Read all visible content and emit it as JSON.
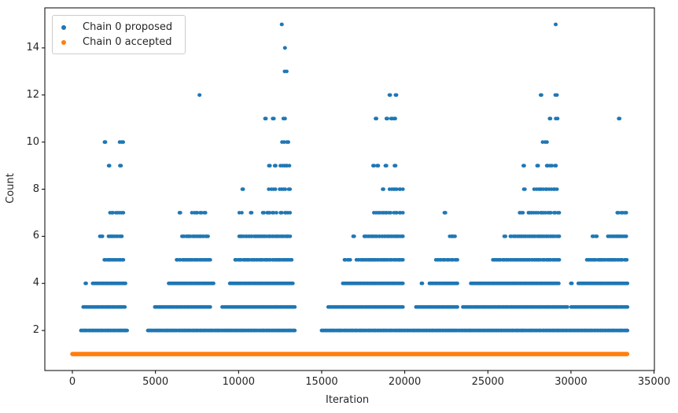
{
  "chart_data": {
    "type": "scatter",
    "title": "",
    "xlabel": "Iteration",
    "ylabel": "Count",
    "xlim": [
      -1657,
      35020
    ],
    "ylim": [
      0.3,
      15.7
    ],
    "xticks": [
      0,
      5000,
      10000,
      15000,
      20000,
      25000,
      30000,
      35000
    ],
    "yticks": [
      2,
      4,
      6,
      8,
      10,
      12,
      14
    ],
    "grid": false,
    "legend_position": "upper-left",
    "marker_diameter_px": 4.6,
    "series": [
      {
        "name": "Chain 0 proposed",
        "color": "#1f77b4",
        "marker": "dot",
        "bands": [
          {
            "count": 15,
            "segments": [
              [
                12590,
                12610
              ],
              [
                29070,
                29090
              ]
            ]
          },
          {
            "count": 14,
            "segments": [
              [
                12780,
                12800
              ]
            ]
          },
          {
            "count": 13,
            "segments": [
              [
                12770,
                12900
              ]
            ]
          },
          {
            "count": 12,
            "segments": [
              [
                7640,
                7660
              ],
              [
                19070,
                19130
              ],
              [
                19440,
                19500
              ],
              [
                28170,
                28230
              ],
              [
                29050,
                29160
              ]
            ]
          },
          {
            "count": 11,
            "segments": [
              [
                11590,
                11650
              ],
              [
                12050,
                12130
              ],
              [
                12690,
                12800
              ],
              [
                18240,
                18300
              ],
              [
                18890,
                18960
              ],
              [
                19170,
                19250
              ],
              [
                19370,
                19430
              ],
              [
                28710,
                28770
              ],
              [
                29080,
                29200
              ],
              [
                32870,
                32930
              ]
            ]
          },
          {
            "count": 10,
            "segments": [
              [
                1930,
                1990
              ],
              [
                2840,
                3060
              ],
              [
                12610,
                13000
              ],
              [
                28290,
                28560
              ]
            ]
          },
          {
            "count": 9,
            "segments": [
              [
                2180,
                2240
              ],
              [
                2860,
                2930
              ],
              [
                11820,
                11890
              ],
              [
                12170,
                12240
              ],
              [
                12510,
                13060
              ],
              [
                18090,
                18160
              ],
              [
                18340,
                18410
              ],
              [
                18830,
                18900
              ],
              [
                19380,
                19450
              ],
              [
                27130,
                27190
              ],
              [
                27960,
                28030
              ],
              [
                28540,
                29100
              ]
            ]
          },
          {
            "count": 8,
            "segments": [
              [
                10220,
                10280
              ],
              [
                11810,
                12220
              ],
              [
                12470,
                13100
              ],
              [
                18670,
                18720
              ],
              [
                19080,
                19890
              ],
              [
                27160,
                27230
              ],
              [
                27780,
                29160
              ]
            ]
          },
          {
            "count": 7,
            "segments": [
              [
                2260,
                3070
              ],
              [
                6440,
                6500
              ],
              [
                7190,
                8010
              ],
              [
                10040,
                10200
              ],
              [
                10730,
                10790
              ],
              [
                11450,
                12280
              ],
              [
                12520,
                13100
              ],
              [
                18140,
                19890
              ],
              [
                22380,
                22450
              ],
              [
                26910,
                27110
              ],
              [
                27440,
                29300
              ],
              [
                32780,
                33330
              ]
            ]
          },
          {
            "count": 6,
            "segments": [
              [
                1650,
                1810
              ],
              [
                2170,
                2980
              ],
              [
                6590,
                8170
              ],
              [
                10030,
                10310
              ],
              [
                10430,
                13110
              ],
              [
                16890,
                16960
              ],
              [
                17560,
                19890
              ],
              [
                22700,
                23030
              ],
              [
                25980,
                26060
              ],
              [
                26350,
                29300
              ],
              [
                31290,
                31350
              ],
              [
                31490,
                31560
              ],
              [
                32220,
                33330
              ]
            ]
          },
          {
            "count": 5,
            "segments": [
              [
                1920,
                3070
              ],
              [
                6270,
                8300
              ],
              [
                9790,
                13200
              ],
              [
                16370,
                16720
              ],
              [
                17090,
                19890
              ],
              [
                21870,
                23170
              ],
              [
                25300,
                29300
              ],
              [
                30950,
                33360
              ]
            ]
          },
          {
            "count": 4,
            "segments": [
              [
                780,
                830
              ],
              [
                1220,
                3200
              ],
              [
                5790,
                8500
              ],
              [
                9470,
                13270
              ],
              [
                16270,
                19890
              ],
              [
                21000,
                21060
              ],
              [
                21480,
                23170
              ],
              [
                23970,
                29270
              ],
              [
                29990,
                30060
              ],
              [
                30440,
                33400
              ]
            ]
          },
          {
            "count": 3,
            "segments": [
              [
                650,
                3160
              ],
              [
                4960,
                8300
              ],
              [
                9010,
                13390
              ],
              [
                15390,
                19890
              ],
              [
                20670,
                23170
              ],
              [
                23490,
                29790
              ],
              [
                30010,
                33400
              ]
            ]
          },
          {
            "count": 2,
            "segments": [
              [
                510,
                3300
              ],
              [
                4540,
                13390
              ],
              [
                14990,
                33400
              ]
            ]
          }
        ]
      },
      {
        "name": "Chain 0 accepted",
        "color": "#ff7f0e",
        "marker": "dot",
        "bands": [
          {
            "count": 1,
            "segments": [
              [
                0,
                33380
              ]
            ]
          }
        ]
      }
    ]
  }
}
